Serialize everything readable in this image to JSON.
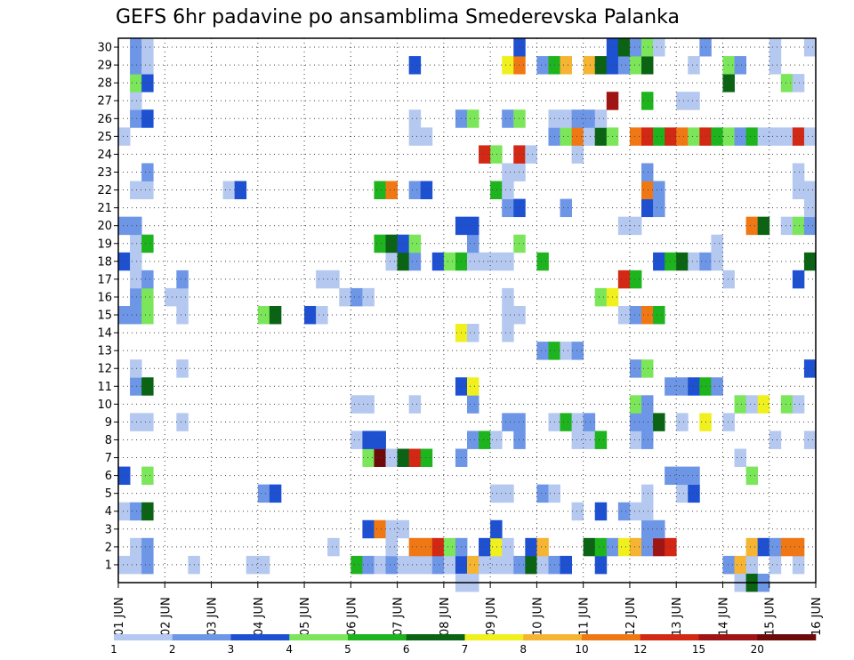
{
  "chart_data": {
    "type": "heatmap",
    "title": "GEFS 6hr padavine po ansamblima Smederevska Palanka",
    "xlabel": "",
    "ylabel": "",
    "x_tick_labels": [
      "01 JUN",
      "02 JUN",
      "03 JUN",
      "04 JUN",
      "05 JUN",
      "06 JUN",
      "07 JUN",
      "08 JUN",
      "09 JUN",
      "10 JUN",
      "11 JUN",
      "12 JUN",
      "13 JUN",
      "14 JUN",
      "15 JUN",
      "16 JUN"
    ],
    "y_tick_labels": [
      "1",
      "2",
      "3",
      "4",
      "5",
      "6",
      "7",
      "8",
      "9",
      "10",
      "11",
      "12",
      "13",
      "14",
      "15",
      "16",
      "17",
      "18",
      "19",
      "20",
      "21",
      "22",
      "23",
      "24",
      "25",
      "26",
      "27",
      "28",
      "29",
      "30"
    ],
    "xlim": [
      0,
      60
    ],
    "ylim": [
      0,
      30
    ],
    "grid": true,
    "colorbar": {
      "position": "bottom",
      "tick_labels": [
        "1",
        "2",
        "3",
        "4",
        "5",
        "6",
        "7",
        "8",
        "10",
        "12",
        "15",
        "20"
      ],
      "colors": [
        "#b4c8f0",
        "#6e96e6",
        "#1e50d2",
        "#7ce65a",
        "#1eb41e",
        "#0a6414",
        "#f0f01e",
        "#f5b432",
        "#f07814",
        "#d22814",
        "#a01414",
        "#6e0a0a"
      ]
    },
    "cells": [
      [
        1,
        1,
        1
      ],
      [
        2,
        1,
        1
      ],
      [
        3,
        1,
        2
      ],
      [
        7,
        1,
        1
      ],
      [
        12,
        1,
        1
      ],
      [
        13,
        1,
        1
      ],
      [
        21,
        1,
        5
      ],
      [
        22,
        1,
        2
      ],
      [
        23,
        1,
        1
      ],
      [
        24,
        1,
        2
      ],
      [
        25,
        1,
        1
      ],
      [
        26,
        1,
        1
      ],
      [
        27,
        1,
        1
      ],
      [
        28,
        1,
        2
      ],
      [
        29,
        1,
        1
      ],
      [
        30,
        1,
        3
      ],
      [
        31,
        1,
        8
      ],
      [
        32,
        1,
        1
      ],
      [
        33,
        1,
        1
      ],
      [
        34,
        1,
        1
      ],
      [
        35,
        1,
        2
      ],
      [
        36,
        1,
        6
      ],
      [
        37,
        1,
        1
      ],
      [
        38,
        1,
        2
      ],
      [
        39,
        1,
        3
      ],
      [
        42,
        1,
        3
      ],
      [
        53,
        1,
        2
      ],
      [
        54,
        1,
        8
      ],
      [
        55,
        1,
        1
      ],
      [
        57,
        1,
        1
      ],
      [
        59,
        1,
        1
      ],
      [
        2,
        2,
        1
      ],
      [
        3,
        2,
        2
      ],
      [
        19,
        2,
        1
      ],
      [
        24,
        2,
        1
      ],
      [
        26,
        2,
        9
      ],
      [
        27,
        2,
        9
      ],
      [
        28,
        2,
        10
      ],
      [
        29,
        2,
        4
      ],
      [
        30,
        2,
        2
      ],
      [
        32,
        2,
        3
      ],
      [
        33,
        2,
        7
      ],
      [
        34,
        2,
        1
      ],
      [
        36,
        2,
        3
      ],
      [
        37,
        2,
        8
      ],
      [
        41,
        2,
        6
      ],
      [
        42,
        2,
        5
      ],
      [
        43,
        2,
        2
      ],
      [
        44,
        2,
        7
      ],
      [
        45,
        2,
        8
      ],
      [
        46,
        2,
        2
      ],
      [
        47,
        2,
        11
      ],
      [
        48,
        2,
        10
      ],
      [
        55,
        2,
        8
      ],
      [
        56,
        2,
        3
      ],
      [
        57,
        2,
        2
      ],
      [
        58,
        2,
        9
      ],
      [
        59,
        2,
        9
      ],
      [
        22,
        3,
        3
      ],
      [
        23,
        3,
        9
      ],
      [
        24,
        3,
        1
      ],
      [
        25,
        3,
        1
      ],
      [
        33,
        3,
        3
      ],
      [
        46,
        3,
        2
      ],
      [
        47,
        3,
        2
      ],
      [
        1,
        4,
        1
      ],
      [
        2,
        4,
        2
      ],
      [
        3,
        4,
        6
      ],
      [
        40,
        4,
        1
      ],
      [
        42,
        4,
        3
      ],
      [
        44,
        4,
        2
      ],
      [
        45,
        4,
        1
      ],
      [
        46,
        4,
        1
      ],
      [
        13,
        5,
        2
      ],
      [
        14,
        5,
        3
      ],
      [
        33,
        5,
        1
      ],
      [
        34,
        5,
        1
      ],
      [
        37,
        5,
        2
      ],
      [
        38,
        5,
        1
      ],
      [
        46,
        5,
        1
      ],
      [
        49,
        5,
        1
      ],
      [
        50,
        5,
        3
      ],
      [
        1,
        6,
        3
      ],
      [
        3,
        6,
        4
      ],
      [
        48,
        6,
        2
      ],
      [
        49,
        6,
        2
      ],
      [
        50,
        6,
        2
      ],
      [
        55,
        6,
        4
      ],
      [
        22,
        7,
        4
      ],
      [
        23,
        7,
        12
      ],
      [
        24,
        7,
        1
      ],
      [
        25,
        7,
        6
      ],
      [
        26,
        7,
        10
      ],
      [
        27,
        7,
        5
      ],
      [
        30,
        7,
        2
      ],
      [
        54,
        7,
        1
      ],
      [
        21,
        8,
        1
      ],
      [
        22,
        8,
        3
      ],
      [
        23,
        8,
        3
      ],
      [
        31,
        8,
        2
      ],
      [
        32,
        8,
        5
      ],
      [
        33,
        8,
        1
      ],
      [
        35,
        8,
        2
      ],
      [
        40,
        8,
        1
      ],
      [
        41,
        8,
        1
      ],
      [
        42,
        8,
        5
      ],
      [
        45,
        8,
        1
      ],
      [
        46,
        8,
        2
      ],
      [
        57,
        8,
        1
      ],
      [
        60,
        8,
        1
      ],
      [
        2,
        9,
        1
      ],
      [
        3,
        9,
        1
      ],
      [
        6,
        9,
        1
      ],
      [
        34,
        9,
        2
      ],
      [
        35,
        9,
        2
      ],
      [
        38,
        9,
        1
      ],
      [
        39,
        9,
        5
      ],
      [
        40,
        9,
        1
      ],
      [
        41,
        9,
        2
      ],
      [
        45,
        9,
        2
      ],
      [
        46,
        9,
        2
      ],
      [
        47,
        9,
        6
      ],
      [
        49,
        9,
        1
      ],
      [
        51,
        9,
        7
      ],
      [
        53,
        9,
        1
      ],
      [
        21,
        10,
        1
      ],
      [
        22,
        10,
        1
      ],
      [
        26,
        10,
        1
      ],
      [
        31,
        10,
        2
      ],
      [
        45,
        10,
        4
      ],
      [
        46,
        10,
        2
      ],
      [
        54,
        10,
        4
      ],
      [
        55,
        10,
        1
      ],
      [
        56,
        10,
        7
      ],
      [
        58,
        10,
        4
      ],
      [
        59,
        10,
        1
      ],
      [
        2,
        11,
        2
      ],
      [
        3,
        11,
        6
      ],
      [
        30,
        11,
        3
      ],
      [
        31,
        11,
        7
      ],
      [
        48,
        11,
        2
      ],
      [
        49,
        11,
        2
      ],
      [
        50,
        11,
        3
      ],
      [
        51,
        11,
        5
      ],
      [
        52,
        11,
        2
      ],
      [
        2,
        12,
        1
      ],
      [
        6,
        12,
        1
      ],
      [
        45,
        12,
        2
      ],
      [
        46,
        12,
        4
      ],
      [
        60,
        12,
        3
      ],
      [
        37,
        13,
        2
      ],
      [
        38,
        13,
        5
      ],
      [
        39,
        13,
        1
      ],
      [
        40,
        13,
        2
      ],
      [
        30,
        14,
        7
      ],
      [
        31,
        14,
        1
      ],
      [
        34,
        14,
        1
      ],
      [
        1,
        15,
        2
      ],
      [
        2,
        15,
        2
      ],
      [
        3,
        15,
        4
      ],
      [
        6,
        15,
        1
      ],
      [
        13,
        15,
        4
      ],
      [
        14,
        15,
        6
      ],
      [
        17,
        15,
        3
      ],
      [
        18,
        15,
        1
      ],
      [
        34,
        15,
        1
      ],
      [
        35,
        15,
        1
      ],
      [
        44,
        15,
        1
      ],
      [
        45,
        15,
        2
      ],
      [
        46,
        15,
        9
      ],
      [
        47,
        15,
        5
      ],
      [
        2,
        16,
        2
      ],
      [
        3,
        16,
        4
      ],
      [
        5,
        16,
        1
      ],
      [
        6,
        16,
        1
      ],
      [
        20,
        16,
        1
      ],
      [
        21,
        16,
        2
      ],
      [
        22,
        16,
        1
      ],
      [
        34,
        16,
        1
      ],
      [
        42,
        16,
        4
      ],
      [
        43,
        16,
        7
      ],
      [
        2,
        17,
        1
      ],
      [
        3,
        17,
        2
      ],
      [
        6,
        17,
        2
      ],
      [
        18,
        17,
        1
      ],
      [
        19,
        17,
        1
      ],
      [
        44,
        17,
        10
      ],
      [
        45,
        17,
        5
      ],
      [
        53,
        17,
        1
      ],
      [
        59,
        17,
        3
      ],
      [
        1,
        18,
        3
      ],
      [
        2,
        18,
        1
      ],
      [
        24,
        18,
        1
      ],
      [
        25,
        18,
        6
      ],
      [
        26,
        18,
        2
      ],
      [
        28,
        18,
        3
      ],
      [
        29,
        18,
        4
      ],
      [
        30,
        18,
        5
      ],
      [
        31,
        18,
        1
      ],
      [
        32,
        18,
        1
      ],
      [
        33,
        18,
        1
      ],
      [
        34,
        18,
        1
      ],
      [
        37,
        18,
        5
      ],
      [
        47,
        18,
        3
      ],
      [
        48,
        18,
        5
      ],
      [
        49,
        18,
        6
      ],
      [
        50,
        18,
        1
      ],
      [
        51,
        18,
        2
      ],
      [
        52,
        18,
        1
      ],
      [
        60,
        18,
        6
      ],
      [
        2,
        19,
        1
      ],
      [
        3,
        19,
        5
      ],
      [
        23,
        19,
        5
      ],
      [
        24,
        19,
        6
      ],
      [
        25,
        19,
        3
      ],
      [
        26,
        19,
        4
      ],
      [
        31,
        19,
        2
      ],
      [
        35,
        19,
        4
      ],
      [
        52,
        19,
        1
      ],
      [
        1,
        20,
        2
      ],
      [
        2,
        20,
        2
      ],
      [
        30,
        20,
        3
      ],
      [
        31,
        20,
        3
      ],
      [
        44,
        20,
        1
      ],
      [
        45,
        20,
        1
      ],
      [
        55,
        20,
        9
      ],
      [
        56,
        20,
        6
      ],
      [
        58,
        20,
        1
      ],
      [
        59,
        20,
        4
      ],
      [
        60,
        20,
        2
      ],
      [
        34,
        21,
        2
      ],
      [
        35,
        21,
        3
      ],
      [
        39,
        21,
        2
      ],
      [
        46,
        21,
        3
      ],
      [
        47,
        21,
        2
      ],
      [
        60,
        21,
        1
      ],
      [
        2,
        22,
        1
      ],
      [
        3,
        22,
        1
      ],
      [
        10,
        22,
        1
      ],
      [
        11,
        22,
        3
      ],
      [
        23,
        22,
        5
      ],
      [
        24,
        22,
        9
      ],
      [
        26,
        22,
        2
      ],
      [
        27,
        22,
        3
      ],
      [
        33,
        22,
        5
      ],
      [
        34,
        22,
        1
      ],
      [
        46,
        22,
        9
      ],
      [
        47,
        22,
        2
      ],
      [
        59,
        22,
        1
      ],
      [
        60,
        22,
        1
      ],
      [
        3,
        23,
        2
      ],
      [
        34,
        23,
        1
      ],
      [
        35,
        23,
        1
      ],
      [
        46,
        23,
        2
      ],
      [
        59,
        23,
        1
      ],
      [
        32,
        24,
        10
      ],
      [
        33,
        24,
        4
      ],
      [
        35,
        24,
        10
      ],
      [
        36,
        24,
        1
      ],
      [
        40,
        24,
        1
      ],
      [
        1,
        25,
        1
      ],
      [
        26,
        25,
        1
      ],
      [
        27,
        25,
        1
      ],
      [
        38,
        25,
        2
      ],
      [
        39,
        25,
        4
      ],
      [
        40,
        25,
        9
      ],
      [
        41,
        25,
        1
      ],
      [
        42,
        25,
        6
      ],
      [
        43,
        25,
        4
      ],
      [
        45,
        25,
        9
      ],
      [
        46,
        25,
        10
      ],
      [
        47,
        25,
        5
      ],
      [
        48,
        25,
        10
      ],
      [
        49,
        25,
        9
      ],
      [
        50,
        25,
        4
      ],
      [
        51,
        25,
        10
      ],
      [
        52,
        25,
        5
      ],
      [
        53,
        25,
        4
      ],
      [
        54,
        25,
        2
      ],
      [
        55,
        25,
        5
      ],
      [
        56,
        25,
        1
      ],
      [
        57,
        25,
        1
      ],
      [
        58,
        25,
        1
      ],
      [
        59,
        25,
        10
      ],
      [
        60,
        25,
        1
      ],
      [
        2,
        26,
        2
      ],
      [
        3,
        26,
        3
      ],
      [
        26,
        26,
        1
      ],
      [
        30,
        26,
        2
      ],
      [
        31,
        26,
        4
      ],
      [
        34,
        26,
        2
      ],
      [
        35,
        26,
        4
      ],
      [
        38,
        26,
        1
      ],
      [
        39,
        26,
        1
      ],
      [
        40,
        26,
        2
      ],
      [
        41,
        26,
        2
      ],
      [
        42,
        26,
        1
      ],
      [
        2,
        27,
        1
      ],
      [
        43,
        27,
        11
      ],
      [
        46,
        27,
        5
      ],
      [
        49,
        27,
        1
      ],
      [
        50,
        27,
        1
      ],
      [
        2,
        28,
        4
      ],
      [
        3,
        28,
        3
      ],
      [
        53,
        28,
        6
      ],
      [
        58,
        28,
        4
      ],
      [
        59,
        28,
        1
      ],
      [
        2,
        29,
        2
      ],
      [
        3,
        29,
        1
      ],
      [
        26,
        29,
        3
      ],
      [
        34,
        29,
        7
      ],
      [
        35,
        29,
        9
      ],
      [
        37,
        29,
        2
      ],
      [
        38,
        29,
        5
      ],
      [
        39,
        29,
        8
      ],
      [
        41,
        29,
        8
      ],
      [
        42,
        29,
        6
      ],
      [
        43,
        29,
        3
      ],
      [
        44,
        29,
        2
      ],
      [
        45,
        29,
        4
      ],
      [
        46,
        29,
        6
      ],
      [
        50,
        29,
        1
      ],
      [
        53,
        29,
        4
      ],
      [
        54,
        29,
        2
      ],
      [
        57,
        29,
        1
      ],
      [
        2,
        30,
        2
      ],
      [
        3,
        30,
        1
      ],
      [
        35,
        30,
        3
      ],
      [
        43,
        30,
        3
      ],
      [
        44,
        30,
        6
      ],
      [
        45,
        30,
        2
      ],
      [
        46,
        30,
        4
      ],
      [
        47,
        30,
        1
      ],
      [
        51,
        30,
        2
      ],
      [
        57,
        30,
        1
      ],
      [
        60,
        30,
        1
      ],
      [
        54,
        0,
        1
      ],
      [
        55,
        0,
        6
      ],
      [
        56,
        0,
        2
      ],
      [
        30,
        0,
        1
      ],
      [
        31,
        0,
        1
      ]
    ]
  }
}
